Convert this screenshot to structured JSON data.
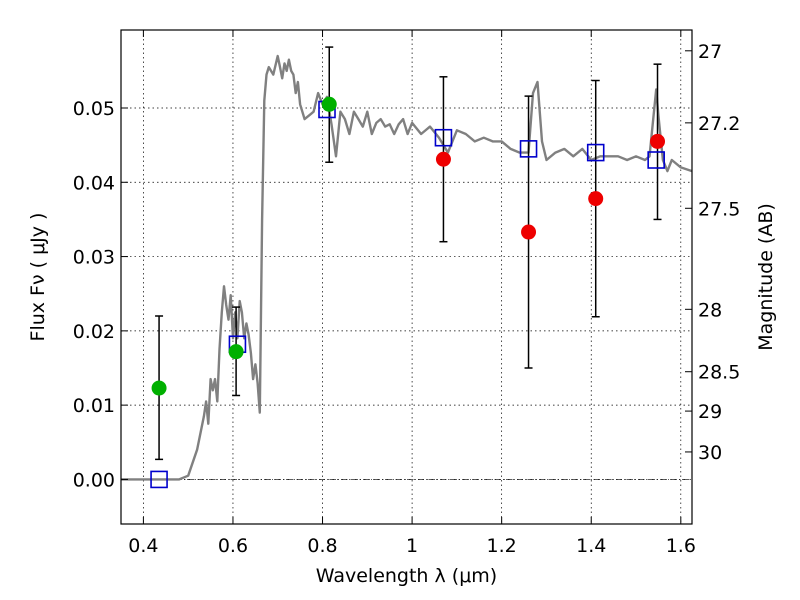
{
  "chart_data": {
    "type": "scatter",
    "title": "",
    "xlabel": "Wavelength  λ (μm)",
    "ylabel": "Flux  Fν  ( μJy )",
    "y2label": "Magnitude (AB)",
    "xlim": [
      0.35,
      1.625
    ],
    "ylim": [
      -0.006,
      0.0605
    ],
    "grid": true,
    "x_ticks": [
      0.4,
      0.6,
      0.8,
      1.0,
      1.2,
      1.4,
      1.6
    ],
    "x_tick_labels": [
      "0.4",
      "0.6",
      "0.8",
      "1",
      "1.2",
      "1.4",
      "1.6"
    ],
    "y_ticks": [
      0.0,
      0.01,
      0.02,
      0.03,
      0.04,
      0.05
    ],
    "y_tick_labels": [
      "0.00",
      "0.01",
      "0.02",
      "0.03",
      "0.04",
      "0.05"
    ],
    "y2_ticks": [
      {
        "flux": 0.0577,
        "label": "27"
      },
      {
        "flux": 0.048,
        "label": "27.2"
      },
      {
        "flux": 0.0365,
        "label": "27.5"
      },
      {
        "flux": 0.0229,
        "label": "28"
      },
      {
        "flux": 0.0145,
        "label": "28.5"
      },
      {
        "flux": 0.0092,
        "label": "29"
      },
      {
        "flux": 0.0037,
        "label": "30"
      }
    ],
    "colors": {
      "model": "#808080",
      "model_photometry": "#0000cc",
      "detections_green": "#00b000",
      "detections_red": "#ee0000",
      "errorbar": "#000000",
      "grid": "#000000"
    },
    "series": [
      {
        "name": "model SED",
        "style": "line",
        "x": [
          0.35,
          0.48,
          0.5,
          0.52,
          0.535,
          0.54,
          0.545,
          0.55,
          0.555,
          0.56,
          0.565,
          0.57,
          0.575,
          0.58,
          0.585,
          0.59,
          0.595,
          0.6,
          0.605,
          0.61,
          0.615,
          0.62,
          0.625,
          0.63,
          0.635,
          0.64,
          0.645,
          0.65,
          0.655,
          0.66,
          0.665,
          0.67,
          0.675,
          0.68,
          0.69,
          0.7,
          0.705,
          0.71,
          0.715,
          0.72,
          0.725,
          0.73,
          0.735,
          0.74,
          0.745,
          0.75,
          0.76,
          0.77,
          0.78,
          0.79,
          0.8,
          0.81,
          0.82,
          0.83,
          0.84,
          0.85,
          0.86,
          0.87,
          0.88,
          0.89,
          0.9,
          0.91,
          0.92,
          0.93,
          0.94,
          0.95,
          0.96,
          0.97,
          0.98,
          0.99,
          1.0,
          1.02,
          1.04,
          1.06,
          1.08,
          1.1,
          1.12,
          1.14,
          1.16,
          1.18,
          1.2,
          1.22,
          1.24,
          1.26,
          1.27,
          1.28,
          1.29,
          1.3,
          1.32,
          1.34,
          1.36,
          1.38,
          1.4,
          1.42,
          1.44,
          1.46,
          1.48,
          1.5,
          1.52,
          1.53,
          1.545,
          1.55,
          1.56,
          1.57,
          1.58,
          1.6,
          1.625
        ],
        "y": [
          0.0,
          0.0,
          0.0005,
          0.004,
          0.0085,
          0.0105,
          0.0075,
          0.0135,
          0.012,
          0.0135,
          0.0105,
          0.0175,
          0.0225,
          0.026,
          0.0235,
          0.0215,
          0.0248,
          0.019,
          0.0225,
          0.019,
          0.024,
          0.0225,
          0.019,
          0.021,
          0.0195,
          0.017,
          0.0135,
          0.0155,
          0.013,
          0.009,
          0.035,
          0.051,
          0.0545,
          0.0555,
          0.0545,
          0.057,
          0.0555,
          0.054,
          0.056,
          0.055,
          0.0565,
          0.055,
          0.0545,
          0.052,
          0.0535,
          0.0505,
          0.0485,
          0.049,
          0.0495,
          0.052,
          0.0505,
          0.0515,
          0.0478,
          0.0435,
          0.0495,
          0.0485,
          0.0465,
          0.0495,
          0.0485,
          0.0475,
          0.0495,
          0.0465,
          0.048,
          0.0485,
          0.0475,
          0.0478,
          0.0465,
          0.0478,
          0.0485,
          0.0465,
          0.048,
          0.0465,
          0.0475,
          0.046,
          0.044,
          0.047,
          0.0465,
          0.0455,
          0.046,
          0.0455,
          0.0455,
          0.0445,
          0.044,
          0.044,
          0.052,
          0.0535,
          0.0455,
          0.043,
          0.044,
          0.0445,
          0.0435,
          0.0445,
          0.043,
          0.0435,
          0.0435,
          0.0435,
          0.043,
          0.0435,
          0.043,
          0.0435,
          0.0525,
          0.049,
          0.043,
          0.0415,
          0.043,
          0.042,
          0.0415
        ]
      },
      {
        "name": "model photometry",
        "style": "square",
        "x": [
          0.435,
          0.61,
          0.81,
          1.07,
          1.26,
          1.41,
          1.545
        ],
        "y": [
          0.0,
          0.0182,
          0.0498,
          0.046,
          0.0445,
          0.044,
          0.043
        ]
      },
      {
        "name": "detections (green)",
        "style": "circle",
        "x": [
          0.435,
          0.607,
          0.815
        ],
        "y": [
          0.0123,
          0.0172,
          0.0505
        ],
        "yerr_low": [
          0.0027,
          0.0113,
          0.0427
        ],
        "yerr_high": [
          0.022,
          0.0232,
          0.0582
        ]
      },
      {
        "name": "detections (red)",
        "style": "circle",
        "x": [
          1.07,
          1.26,
          1.41,
          1.548
        ],
        "y": [
          0.0431,
          0.0333,
          0.0378,
          0.0455
        ],
        "yerr_low": [
          0.032,
          0.015,
          0.0219,
          0.035
        ],
        "yerr_high": [
          0.0542,
          0.0516,
          0.0537,
          0.0559
        ]
      }
    ]
  }
}
